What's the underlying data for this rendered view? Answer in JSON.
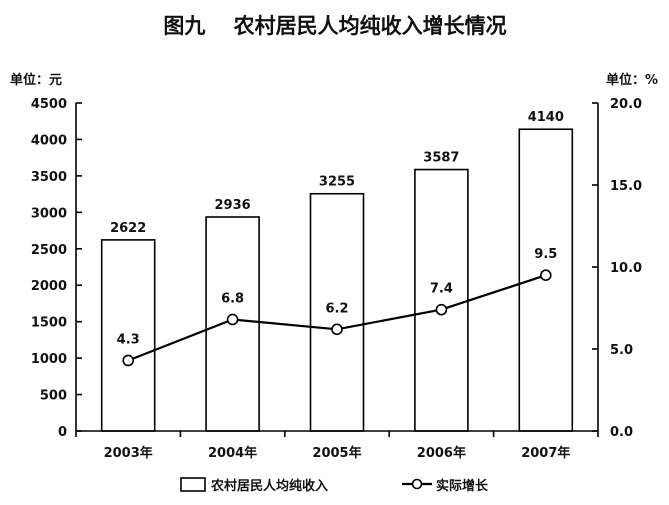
{
  "chart_data": {
    "type": "bar",
    "title": "图九　 农村居民人均纯收入增长情况",
    "left_unit": "单位：元",
    "right_unit": "单位：%",
    "categories": [
      "2003年",
      "2004年",
      "2005年",
      "2006年",
      "2007年"
    ],
    "series": [
      {
        "name": "农村居民人均纯收入",
        "type": "bar",
        "axis": "left",
        "values": [
          2622,
          2936,
          3255,
          3587,
          4140
        ]
      },
      {
        "name": "实际增长",
        "type": "line",
        "axis": "right",
        "values": [
          4.3,
          6.8,
          6.2,
          7.4,
          9.5
        ]
      }
    ],
    "left_ylim": [
      0,
      4500
    ],
    "left_ticks": [
      "0",
      "500",
      "1000",
      "1500",
      "2000",
      "2500",
      "3000",
      "3500",
      "4000",
      "4500"
    ],
    "right_ylim": [
      0,
      20
    ],
    "right_ticks": [
      "0.0",
      "5.0",
      "10.0",
      "15.0",
      "20.0"
    ],
    "line_labels": [
      "4.3",
      "6.8",
      "6.2",
      "7.4",
      "9.5"
    ],
    "grid": false,
    "legend_position": "bottom"
  }
}
